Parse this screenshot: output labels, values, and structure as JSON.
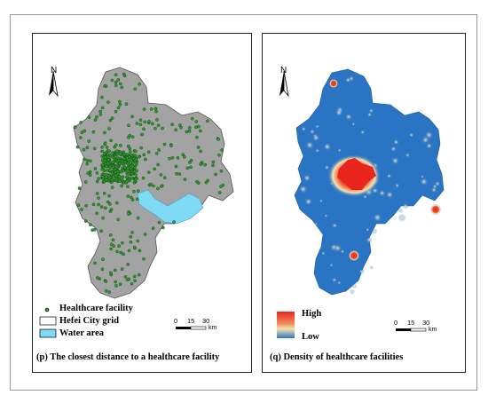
{
  "maps": [
    {
      "caption": "(p) The closest distance to a healthcare facility",
      "north": "N",
      "legend": {
        "facility": "Healthcare facility",
        "grid": "Hefei City grid",
        "water": "Water area"
      },
      "scale": {
        "ticks": [
          "0",
          "15",
          "30"
        ],
        "unit": "km"
      },
      "colors": {
        "land": "#a3a3a3",
        "water": "#7fdbf5",
        "facility": "#2e9a2e"
      }
    },
    {
      "caption": "(q) Density of healthcare facilities",
      "north": "N",
      "legend": {
        "high": "High",
        "low": "Low"
      },
      "scale": {
        "ticks": [
          "0",
          "15",
          "30"
        ],
        "unit": "km"
      },
      "colors": {
        "base": "#2a74c4",
        "hot": "#e8261d",
        "warm": "#f5e3b0"
      }
    }
  ]
}
